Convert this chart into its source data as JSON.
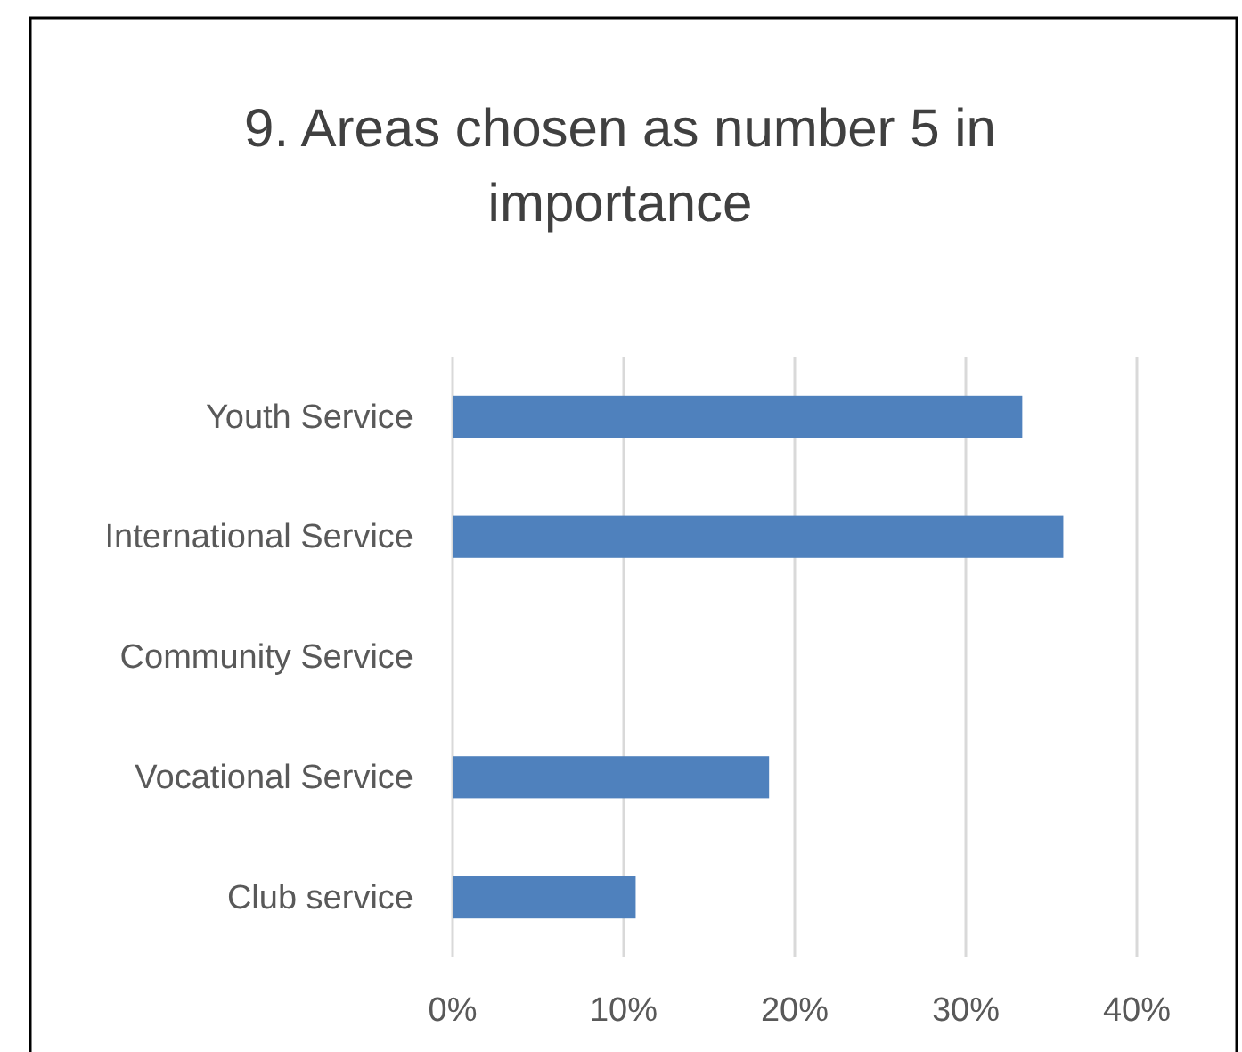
{
  "chart_data": {
    "type": "bar",
    "orientation": "horizontal",
    "title": "9. Areas chosen as number 5 in importance",
    "categories": [
      "Youth Service",
      "International Service",
      "Community Service",
      "Vocational Service",
      "Club service"
    ],
    "values": [
      33.3,
      35.7,
      0,
      18.5,
      10.7
    ],
    "color": "#4f81bd",
    "xlim": [
      0,
      40
    ],
    "xticks": [
      {
        "value": 0,
        "label": "0%"
      },
      {
        "value": 10,
        "label": "10%"
      },
      {
        "value": 20,
        "label": "20%"
      },
      {
        "value": 30,
        "label": "30%"
      },
      {
        "value": 40,
        "label": "40%"
      }
    ],
    "grid": "x"
  }
}
